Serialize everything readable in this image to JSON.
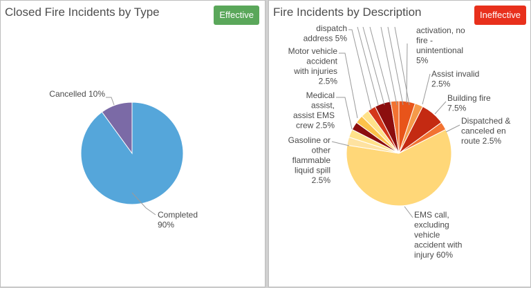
{
  "left_panel": {
    "title": "Closed Fire Incidents by Type",
    "badge": "Effective",
    "badge_color": "#5aa75a"
  },
  "right_panel": {
    "title": "Fire Incidents by Description",
    "badge": "Ineffective",
    "badge_color": "#e8301c"
  },
  "chart_data": [
    {
      "type": "pie",
      "title": "Closed Fire Incidents by Type",
      "slices": [
        {
          "label": "Completed",
          "value": 90,
          "color": "#55a6da",
          "label_text": [
            "Completed",
            "90%"
          ]
        },
        {
          "label": "Cancelled",
          "value": 10,
          "color": "#7b6aa6",
          "label_text": [
            "Cancelled 10%"
          ]
        }
      ]
    },
    {
      "type": "pie",
      "title": "Fire Incidents by Description",
      "slices": [
        {
          "label": "activation, no fire - unintentional",
          "value": 5,
          "color": "#e8541a",
          "label_text": [
            "activation, no",
            "fire -",
            "unintentional",
            "5%"
          ]
        },
        {
          "label": "Assist invalid",
          "value": 2.5,
          "color": "#f59a4a",
          "label_text": [
            "Assist invalid",
            "2.5%"
          ]
        },
        {
          "label": "Building fire",
          "value": 7.5,
          "color": "#c42a12",
          "label_text": [
            "Building fire",
            "7.5%"
          ]
        },
        {
          "label": "Dispatched & canceled en route",
          "value": 2.5,
          "color": "#f27332",
          "label_text": [
            "Dispatched &",
            "canceled en",
            "route 2.5%"
          ]
        },
        {
          "label": "EMS call, excluding vehicle accident with injury",
          "value": 60,
          "color": "#ffd778",
          "label_text": [
            "EMS call,",
            "excluding",
            "vehicle",
            "accident with",
            "injury 60%"
          ]
        },
        {
          "label": "Gasoline or other flammable liquid spill",
          "value": 2.5,
          "color": "#fee2a0",
          "label_text": [
            "Gasoline or",
            "other",
            "flammable",
            "liquid spill",
            "2.5%"
          ]
        },
        {
          "label": "Medical assist, assist EMS crew",
          "value": 2.5,
          "color": "#ffe28a",
          "label_text": [
            "Medical",
            "assist,",
            "assist EMS",
            "crew 2.5%"
          ]
        },
        {
          "label": "Unlabeled A",
          "value": 2.5,
          "color": "#8c0e0e",
          "label_text": []
        },
        {
          "label": "Motor vehicle accident with injuries",
          "value": 2.5,
          "color": "#fcc14a",
          "label_text": [
            "Motor vehicle",
            "accident",
            "with injuries",
            "2.5%"
          ]
        },
        {
          "label": "Unlabeled B",
          "value": 2.5,
          "color": "#ffe28a",
          "label_text": []
        },
        {
          "label": "Unlabeled C",
          "value": 2.5,
          "color": "#d4371a",
          "label_text": []
        },
        {
          "label": "dispatch address",
          "value": 5,
          "color": "#8c0e0e",
          "label_text": [
            "dispatch",
            "address 5%"
          ]
        },
        {
          "label": "Unlabeled D",
          "value": 2.5,
          "color": "#f27332",
          "label_text": []
        }
      ]
    }
  ]
}
